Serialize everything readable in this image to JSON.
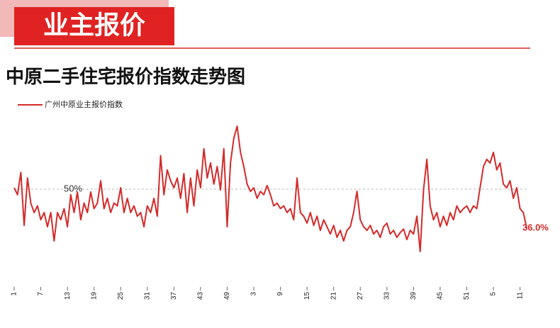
{
  "header": {
    "title": "业主报价"
  },
  "chart_data": {
    "type": "line",
    "title": "中原二手住宅报价指数走势图",
    "legend": "top-left",
    "ylim": [
      20,
      80
    ],
    "reference_line": {
      "value": 50,
      "label": "50%"
    },
    "categories": [
      "1",
      null,
      null,
      null,
      null,
      null,
      null,
      null,
      "7",
      null,
      null,
      null,
      null,
      null,
      null,
      null,
      "13",
      null,
      null,
      null,
      null,
      null,
      null,
      null,
      "19",
      null,
      null,
      null,
      null,
      null,
      null,
      null,
      "25",
      null,
      null,
      null,
      null,
      null,
      null,
      null,
      "31",
      null,
      null,
      null,
      null,
      null,
      null,
      null,
      "37",
      null,
      null,
      null,
      null,
      null,
      null,
      null,
      "43",
      null,
      null,
      null,
      null,
      null,
      null,
      null,
      "49",
      null,
      null,
      null,
      null,
      null,
      null,
      null,
      "3",
      null,
      null,
      null,
      null,
      null,
      null,
      null,
      "9",
      null,
      null,
      null,
      null,
      null,
      null,
      null,
      "15",
      null,
      null,
      null,
      null,
      null,
      null,
      null,
      "21",
      null,
      null,
      null,
      null,
      null,
      null,
      null,
      "27",
      null,
      null,
      null,
      null,
      null,
      null,
      null,
      "33",
      null,
      null,
      null,
      null,
      null,
      null,
      null,
      "39",
      null,
      null,
      null,
      null,
      null,
      null,
      null,
      "45",
      null,
      null,
      null,
      null,
      null,
      null,
      null,
      "51",
      null,
      null,
      null,
      null,
      null,
      null,
      null,
      "5",
      null,
      null,
      null,
      null,
      null,
      null,
      null,
      "11",
      null,
      null
    ],
    "series": [
      {
        "name": "广州中原业主报价指数",
        "color": "#d42a2a",
        "end_label": "36.0%",
        "values": [
          50.5,
          48,
          56,
          37,
          54,
          45,
          41.6,
          44,
          39,
          41.6,
          36.5,
          41.6,
          31.4,
          41.6,
          39,
          43,
          36.5,
          48,
          41.6,
          49,
          39,
          45,
          41.6,
          49,
          43,
          45,
          53,
          43,
          46.7,
          41.6,
          45,
          44,
          50.5,
          41.6,
          46.7,
          41.6,
          44,
          40.3,
          41.6,
          36.5,
          44,
          41.6,
          46.7,
          40.3,
          62,
          48,
          56.9,
          53,
          50.5,
          54,
          46.7,
          55.6,
          41.6,
          54,
          44,
          56.9,
          50.5,
          64.5,
          54,
          59.4,
          51.8,
          58.1,
          49.7,
          64.5,
          36.5,
          59.4,
          68.3,
          72.6,
          63.2,
          58.1,
          51.8,
          49.2,
          50.5,
          46.7,
          49.2,
          48,
          51.3,
          48,
          44,
          45,
          43,
          44,
          41.6,
          43,
          39,
          54,
          41.6,
          40.3,
          37.8,
          41.6,
          37,
          40.3,
          35.2,
          39,
          36.5,
          33.9,
          37,
          32.7,
          35.2,
          31.4,
          35.2,
          36.5,
          41.6,
          49.2,
          39,
          36.5,
          35.2,
          37,
          33.9,
          35.2,
          32.7,
          36.5,
          37.8,
          33.9,
          35.2,
          32.7,
          34.4,
          35.7,
          31.9,
          35.2,
          33.9,
          40.3,
          27.6,
          49.7,
          60.7,
          44,
          39,
          41.6,
          36.5,
          40.3,
          37,
          41.6,
          39,
          44,
          41.6,
          43,
          44,
          41.6,
          44,
          43,
          50.5,
          58.1,
          60.7,
          59.4,
          63.2,
          56.9,
          59.4,
          51.8,
          50.5,
          53,
          46.7,
          50.5,
          43,
          41.6,
          36.0
        ]
      }
    ]
  }
}
